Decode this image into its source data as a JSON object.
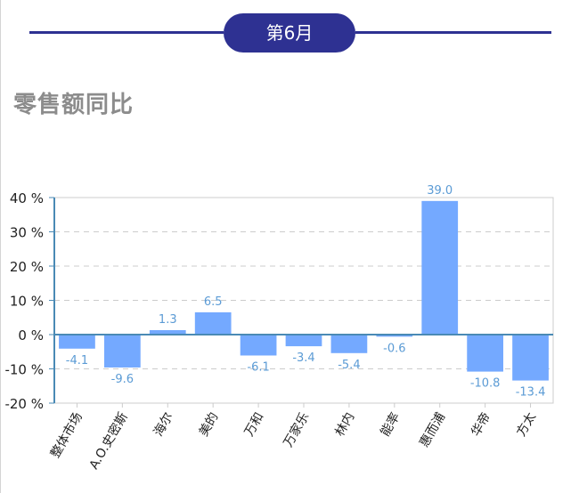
{
  "header": {
    "month_label": "第6月"
  },
  "section": {
    "title": "零售额同比"
  },
  "colors": {
    "accent": "#2e3192",
    "bar": "#74a9ff",
    "axis": "#4a8ab5",
    "grid": "#cccccc",
    "label": "#5b9bd5"
  },
  "chart_data": {
    "type": "bar",
    "title": "零售额同比",
    "xlabel": "",
    "ylabel": "",
    "categories": [
      "整体市场",
      "A.O.史密斯",
      "海尔",
      "美的",
      "万和",
      "万家乐",
      "林内",
      "能率",
      "惠而浦",
      "华帝",
      "方太"
    ],
    "values": [
      -4.1,
      -9.6,
      1.3,
      6.5,
      -6.1,
      -3.4,
      -5.4,
      -0.6,
      39.0,
      -10.8,
      -13.4
    ],
    "value_labels": [
      "-4.1",
      "-9.6",
      "1.3",
      "6.5",
      "-6.1",
      "-3.4",
      "-5.4",
      "-0.6",
      "39.0",
      "-10.8",
      "-13.4"
    ],
    "ylim": [
      -20,
      40
    ],
    "yticks": [
      40,
      30,
      20,
      10,
      0,
      -10,
      -20
    ],
    "ytick_labels": [
      "40 %",
      "30 %",
      "20 %",
      "10 %",
      "0 %",
      "-10 %",
      "-20 %"
    ],
    "grid": true,
    "legend": "none"
  }
}
